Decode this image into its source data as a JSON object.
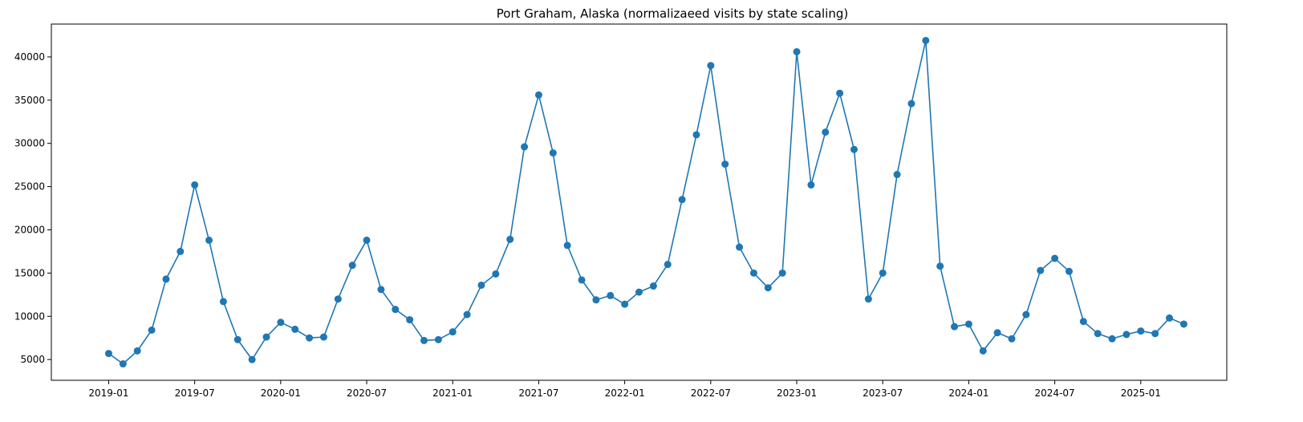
{
  "chart_data": {
    "type": "line",
    "title": "Port Graham, Alaska (normalizaeed visits by state scaling)",
    "xlabel": "",
    "ylabel": "",
    "line_color": "#1f77b4",
    "marker": "circle",
    "grid": false,
    "legend": "none",
    "x_ticks": [
      "2019-01",
      "2019-07",
      "2020-01",
      "2020-07",
      "2021-01",
      "2021-07",
      "2022-01",
      "2022-07",
      "2023-01",
      "2023-07",
      "2024-01",
      "2024-07",
      "2025-01"
    ],
    "y_ticks": [
      5000,
      10000,
      15000,
      20000,
      25000,
      30000,
      35000,
      40000
    ],
    "xlim": [
      "2018-09",
      "2025-07"
    ],
    "ylim": [
      2600,
      43800
    ],
    "series": [
      {
        "x": [
          "2019-01",
          "2019-02",
          "2019-03",
          "2019-04",
          "2019-05",
          "2019-06",
          "2019-07",
          "2019-08",
          "2019-09",
          "2019-10",
          "2019-11",
          "2019-12",
          "2020-01",
          "2020-02",
          "2020-03",
          "2020-04",
          "2020-05",
          "2020-06",
          "2020-07",
          "2020-08",
          "2020-09",
          "2020-10",
          "2020-11",
          "2020-12",
          "2021-01",
          "2021-02",
          "2021-03",
          "2021-04",
          "2021-05",
          "2021-06",
          "2021-07",
          "2021-08",
          "2021-09",
          "2021-10",
          "2021-11",
          "2021-12",
          "2022-01",
          "2022-02",
          "2022-03",
          "2022-04",
          "2022-05",
          "2022-06",
          "2022-07",
          "2022-08",
          "2022-09",
          "2022-10",
          "2022-11",
          "2022-12",
          "2023-01",
          "2023-02",
          "2023-03",
          "2023-04",
          "2023-05",
          "2023-06",
          "2023-07",
          "2023-08",
          "2023-09",
          "2023-10",
          "2023-11",
          "2023-12",
          "2024-01",
          "2024-02",
          "2024-03",
          "2024-04",
          "2024-05",
          "2024-06",
          "2024-07",
          "2024-08",
          "2024-09",
          "2024-10",
          "2024-11",
          "2024-12",
          "2025-01",
          "2025-02",
          "2025-03",
          "2025-04"
        ],
        "values": [
          5700,
          4500,
          6000,
          8400,
          14300,
          17500,
          25200,
          18800,
          11700,
          7300,
          5000,
          7600,
          9300,
          8500,
          7500,
          7600,
          12000,
          15900,
          18800,
          13100,
          10800,
          9600,
          7200,
          7300,
          8200,
          10200,
          13600,
          14900,
          18900,
          29600,
          35600,
          28900,
          18200,
          14200,
          11900,
          12400,
          11400,
          12800,
          13500,
          16000,
          23500,
          31000,
          39000,
          27600,
          18000,
          15000,
          13300,
          15000,
          40600,
          25200,
          31300,
          35800,
          29300,
          12000,
          15000,
          26400,
          34600,
          41900,
          15800,
          8800,
          9100,
          6000,
          8100,
          7400,
          10200,
          15300,
          16700,
          15200,
          9400,
          8000,
          7400,
          7900,
          8300,
          8000,
          9800,
          9100
        ]
      }
    ]
  }
}
